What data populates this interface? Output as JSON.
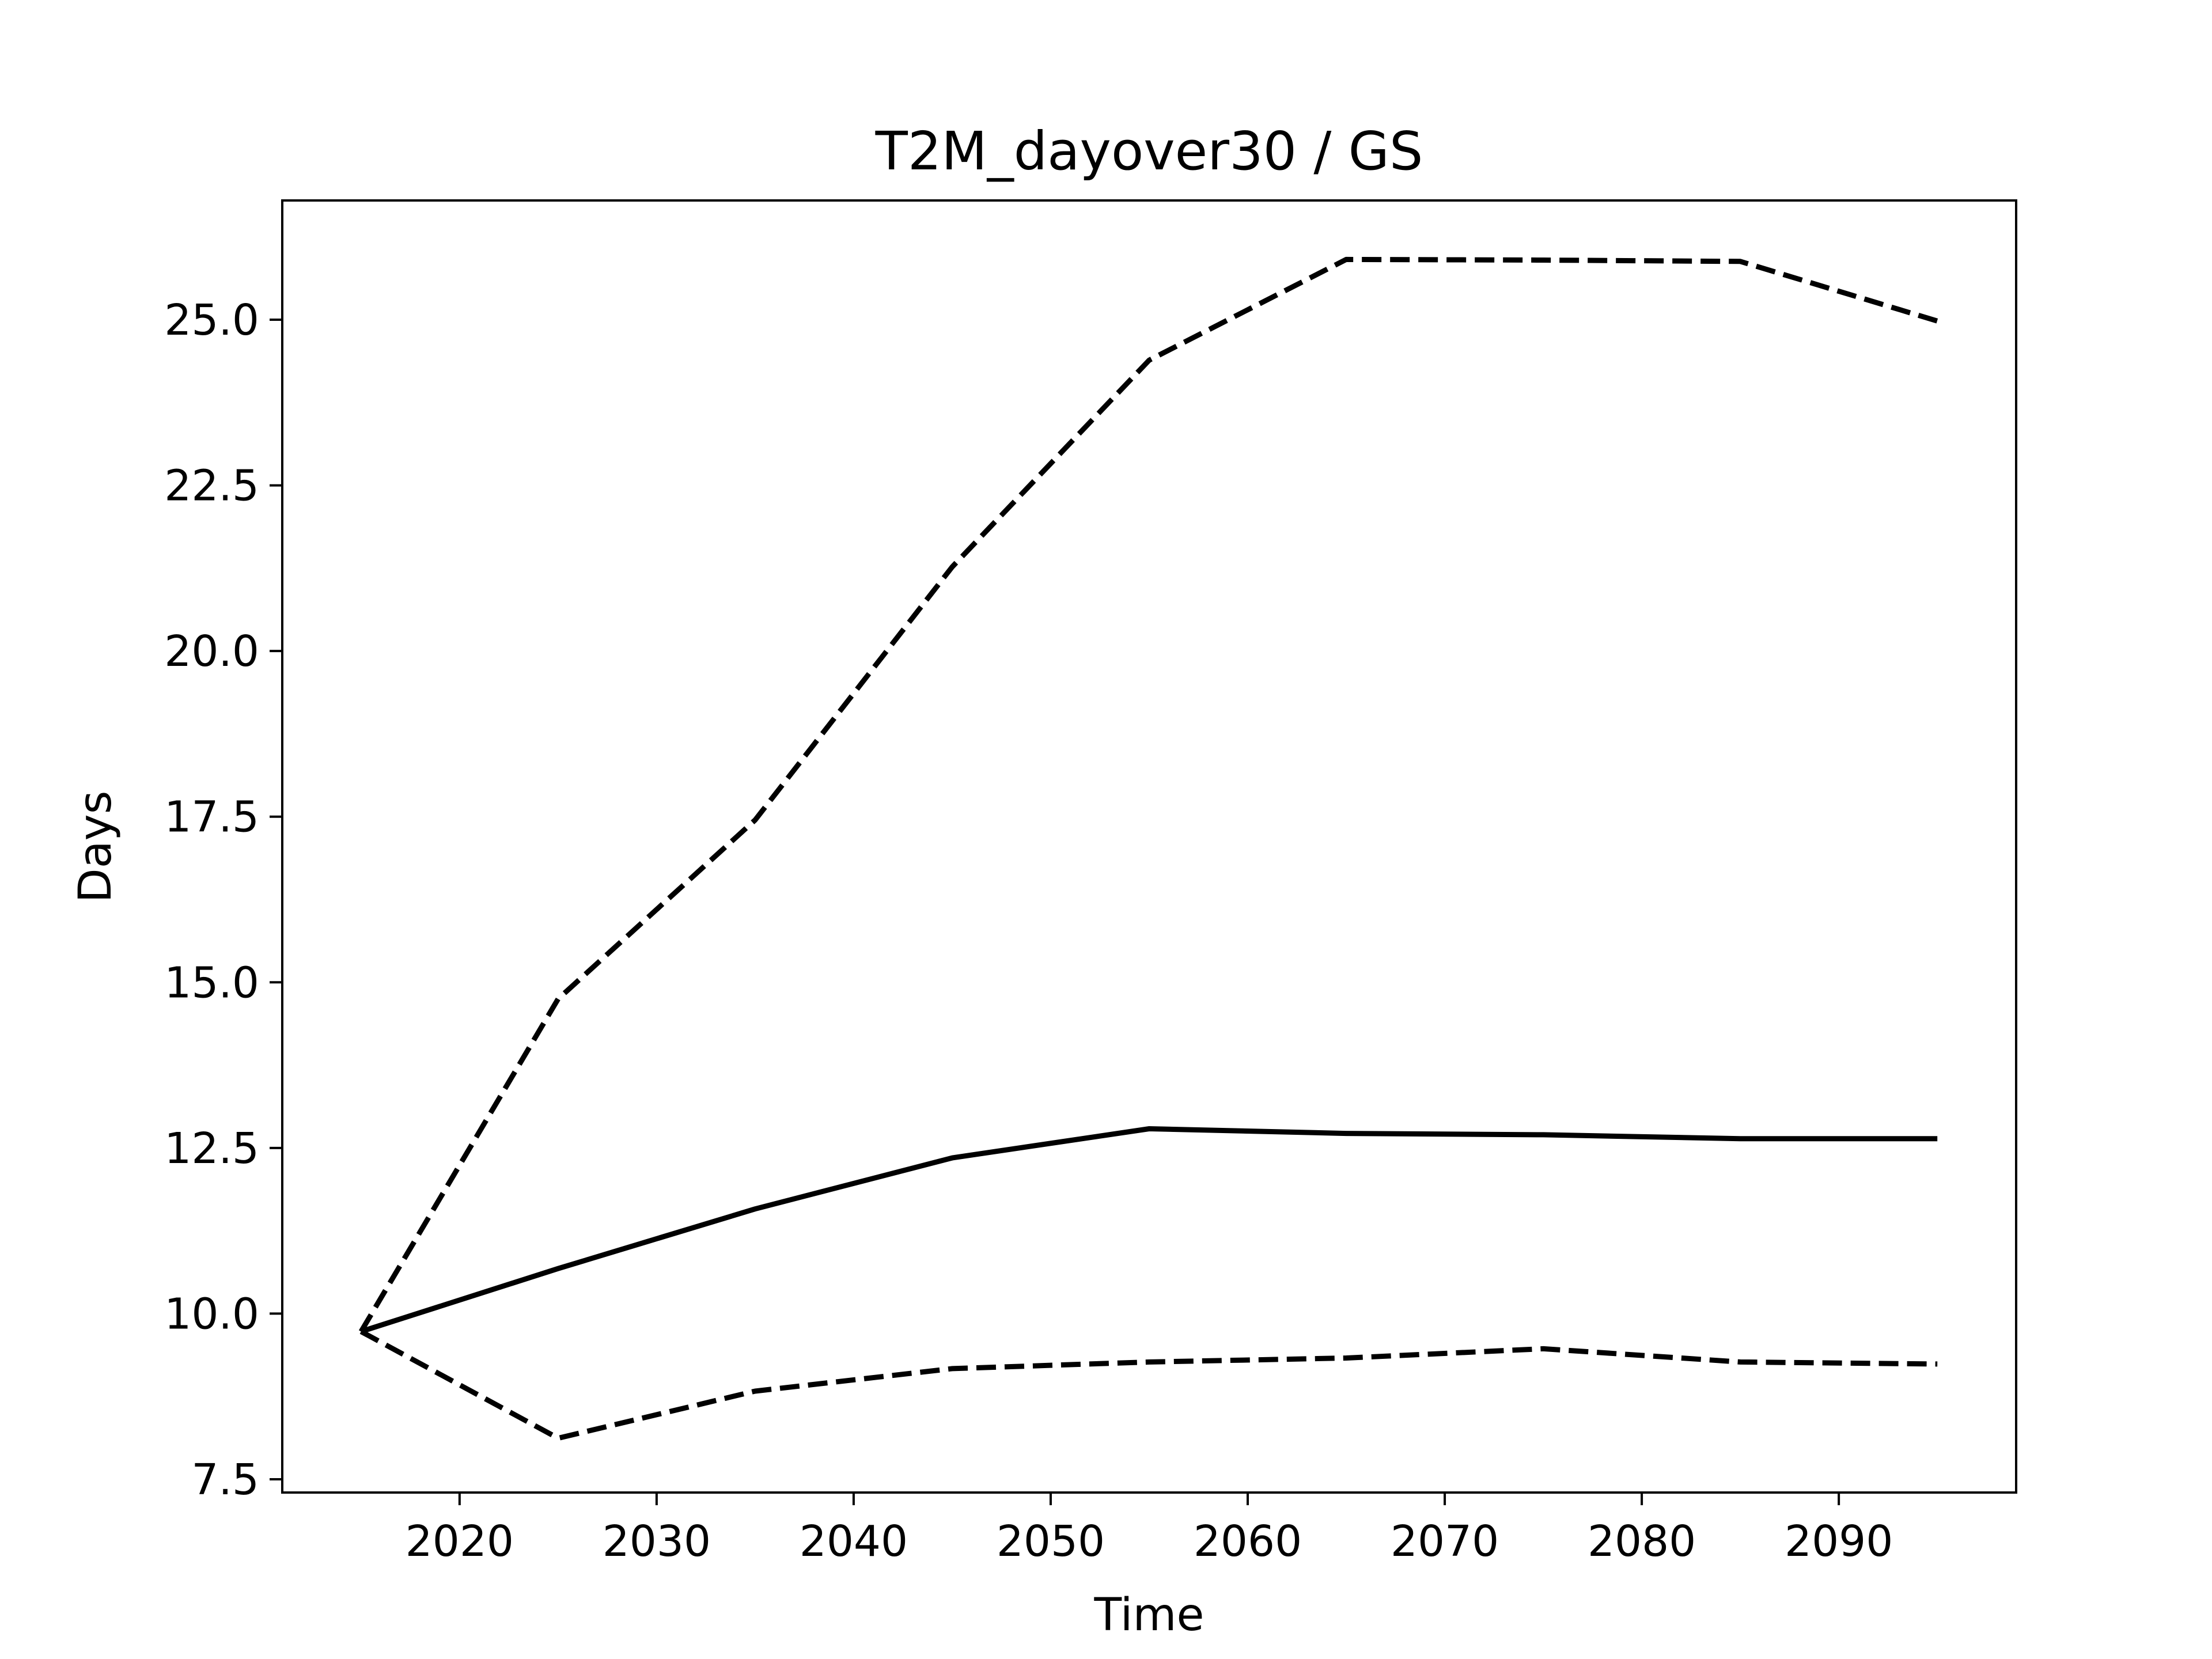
{
  "chart_data": {
    "type": "line",
    "title": "T2M_dayover30 / GS",
    "xlabel": "Time",
    "ylabel": "Days",
    "xlim": [
      2011,
      2099
    ],
    "ylim": [
      7.3,
      26.8
    ],
    "xticks": [
      {
        "value": 2020,
        "label": "2020"
      },
      {
        "value": 2030,
        "label": "2030"
      },
      {
        "value": 2040,
        "label": "2040"
      },
      {
        "value": 2050,
        "label": "2050"
      },
      {
        "value": 2060,
        "label": "2060"
      },
      {
        "value": 2070,
        "label": "2070"
      },
      {
        "value": 2080,
        "label": "2080"
      },
      {
        "value": 2090,
        "label": "2090"
      }
    ],
    "yticks": [
      {
        "value": 7.5,
        "label": "7.5"
      },
      {
        "value": 10.0,
        "label": "10.0"
      },
      {
        "value": 12.5,
        "label": "12.5"
      },
      {
        "value": 15.0,
        "label": "15.0"
      },
      {
        "value": 17.5,
        "label": "17.5"
      },
      {
        "value": 20.0,
        "label": "20.0"
      },
      {
        "value": 22.5,
        "label": "22.5"
      },
      {
        "value": 25.0,
        "label": "25.0"
      }
    ],
    "x": [
      2015,
      2025,
      2035,
      2045,
      2055,
      2065,
      2075,
      2085,
      2095
    ],
    "series": [
      {
        "style": "solid",
        "color": "#000000",
        "values": [
          9.73,
          10.68,
          11.58,
          12.35,
          12.79,
          12.72,
          12.7,
          12.64,
          12.64
        ]
      },
      {
        "style": "dashed",
        "color": "#000000",
        "values": [
          9.73,
          14.75,
          17.45,
          21.27,
          24.39,
          25.91,
          25.9,
          25.88,
          24.98
        ]
      },
      {
        "style": "dashed",
        "color": "#000000",
        "values": [
          9.73,
          8.12,
          8.83,
          9.17,
          9.27,
          9.33,
          9.47,
          9.27,
          9.24
        ]
      }
    ],
    "grid": false,
    "legend": "none"
  }
}
